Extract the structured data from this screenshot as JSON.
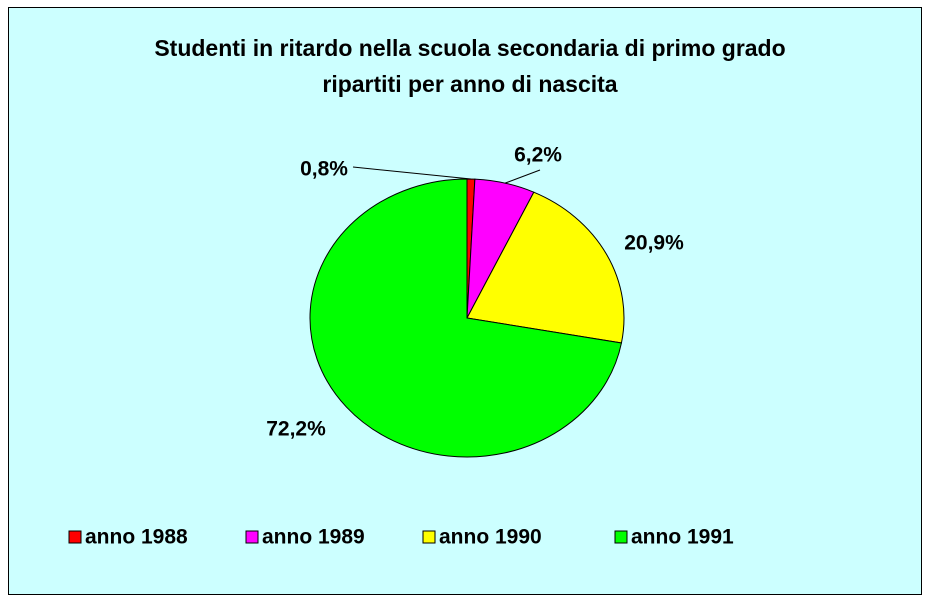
{
  "chart_data": {
    "type": "pie",
    "title": "Studenti in ritardo nella scuola secondaria di primo grado ripartiti per anno di nascita",
    "categories": [
      "anno 1988",
      "anno 1989",
      "anno 1990",
      "anno 1991"
    ],
    "values": [
      0.8,
      6.2,
      20.9,
      72.2
    ],
    "value_labels": [
      "0,8%",
      "6,2%",
      "20,9%",
      "72,2%"
    ],
    "colors": [
      "#ff0000",
      "#ff00ff",
      "#ffff00",
      "#00ff00"
    ],
    "legend": "bottom"
  }
}
